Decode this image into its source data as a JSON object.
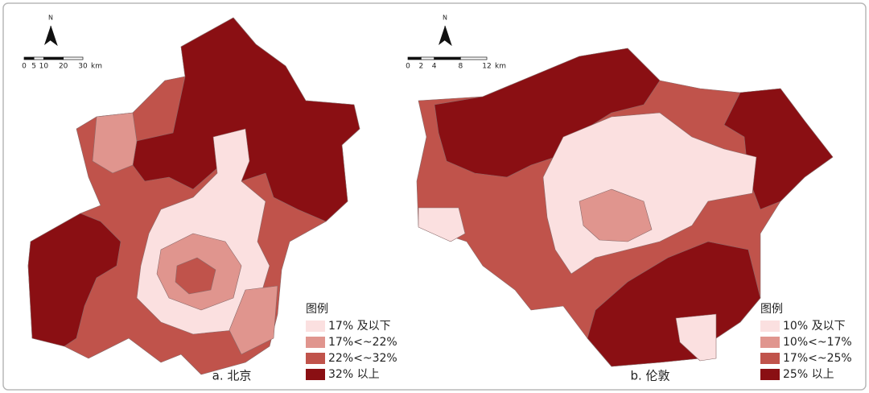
{
  "panels": [
    {
      "north": "N",
      "scale": {
        "ticks": [
          0,
          5,
          10,
          20,
          30
        ],
        "unit": "km"
      },
      "legend": {
        "title": "图例",
        "items": [
          {
            "label": "17% 及以下",
            "color": "#fbe0e0"
          },
          {
            "label": "17%<~22%",
            "color": "#e0958e"
          },
          {
            "label": "22%<~32%",
            "color": "#c0534b"
          },
          {
            "label": "32% 以上",
            "color": "#8a0f13"
          }
        ]
      },
      "caption": "a. 北京"
    },
    {
      "north": "N",
      "scale": {
        "ticks": [
          0,
          2,
          4,
          8,
          12
        ],
        "unit": "km"
      },
      "legend": {
        "title": "图例",
        "items": [
          {
            "label": "10% 及以下",
            "color": "#fbe0e0"
          },
          {
            "label": "10%<~17%",
            "color": "#e0958e"
          },
          {
            "label": "17%<~25%",
            "color": "#c0534b"
          },
          {
            "label": "25% 以上",
            "color": "#8a0f13"
          }
        ]
      },
      "caption": "b. 伦敦"
    }
  ]
}
